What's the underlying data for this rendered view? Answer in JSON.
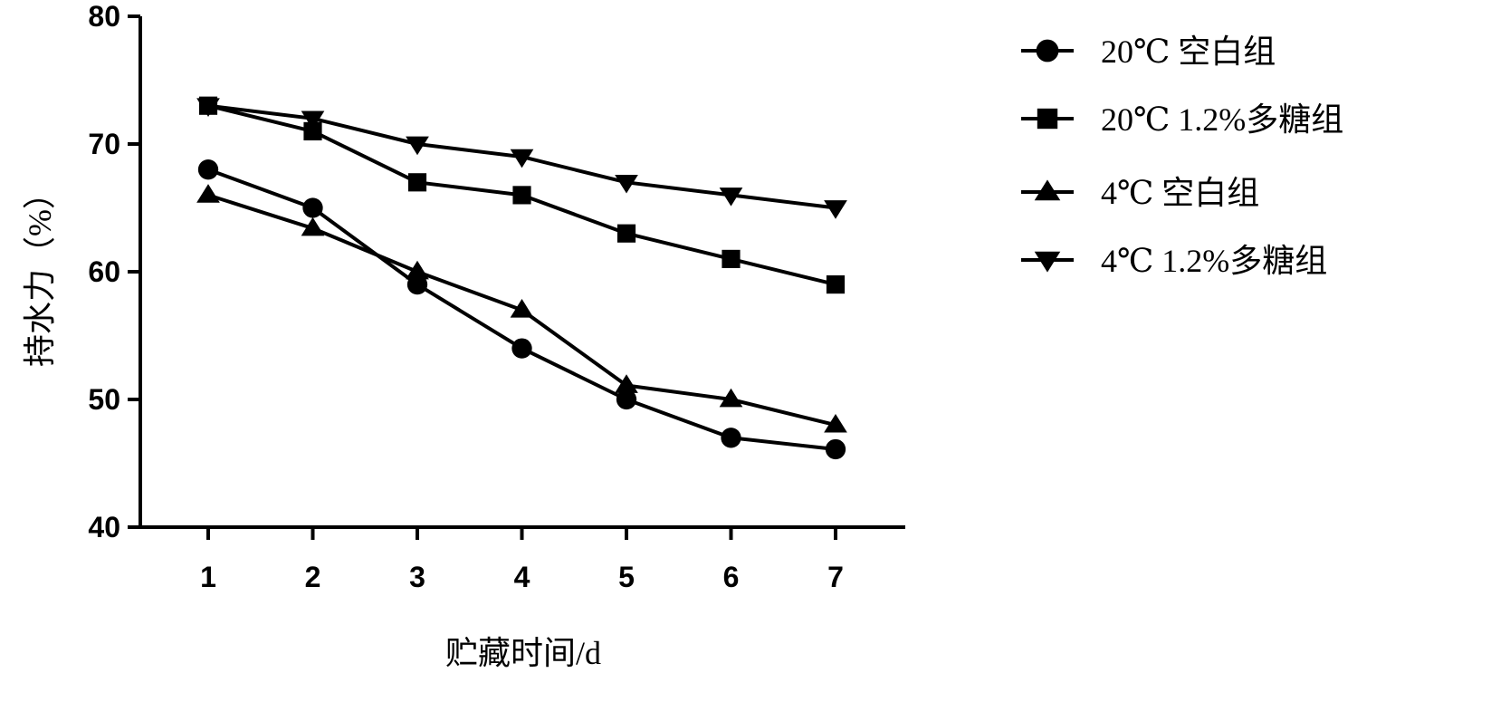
{
  "chart_data": {
    "type": "line",
    "title": "",
    "xlabel": "贮藏时间/d",
    "ylabel": "持水力（%）",
    "x": [
      1,
      2,
      3,
      4,
      5,
      6,
      7
    ],
    "x_tick_labels": [
      "1",
      "2",
      "3",
      "4",
      "5",
      "6",
      "7"
    ],
    "y_tick_labels": [
      "40",
      "50",
      "60",
      "70",
      "80"
    ],
    "y_ticks": [
      40,
      50,
      60,
      70,
      80
    ],
    "ylim": [
      40,
      80
    ],
    "grid": false,
    "legend_position": "right",
    "series": [
      {
        "name": "20℃ 空白组",
        "marker": "circle",
        "color": "#000000",
        "values": [
          68,
          65,
          59,
          54,
          50,
          47,
          46.1
        ]
      },
      {
        "name": "20℃ 1.2%多糖组",
        "marker": "square",
        "color": "#000000",
        "values": [
          73,
          71,
          67,
          66,
          63,
          61,
          59
        ]
      },
      {
        "name": "4℃ 空白组",
        "marker": "triangle-up",
        "color": "#000000",
        "values": [
          66,
          63.4,
          60,
          57,
          51.1,
          50,
          48
        ]
      },
      {
        "name": "4℃ 1.2%多糖组",
        "marker": "triangle-down",
        "color": "#000000",
        "values": [
          73,
          72,
          70,
          69,
          67,
          66,
          65
        ]
      }
    ]
  }
}
